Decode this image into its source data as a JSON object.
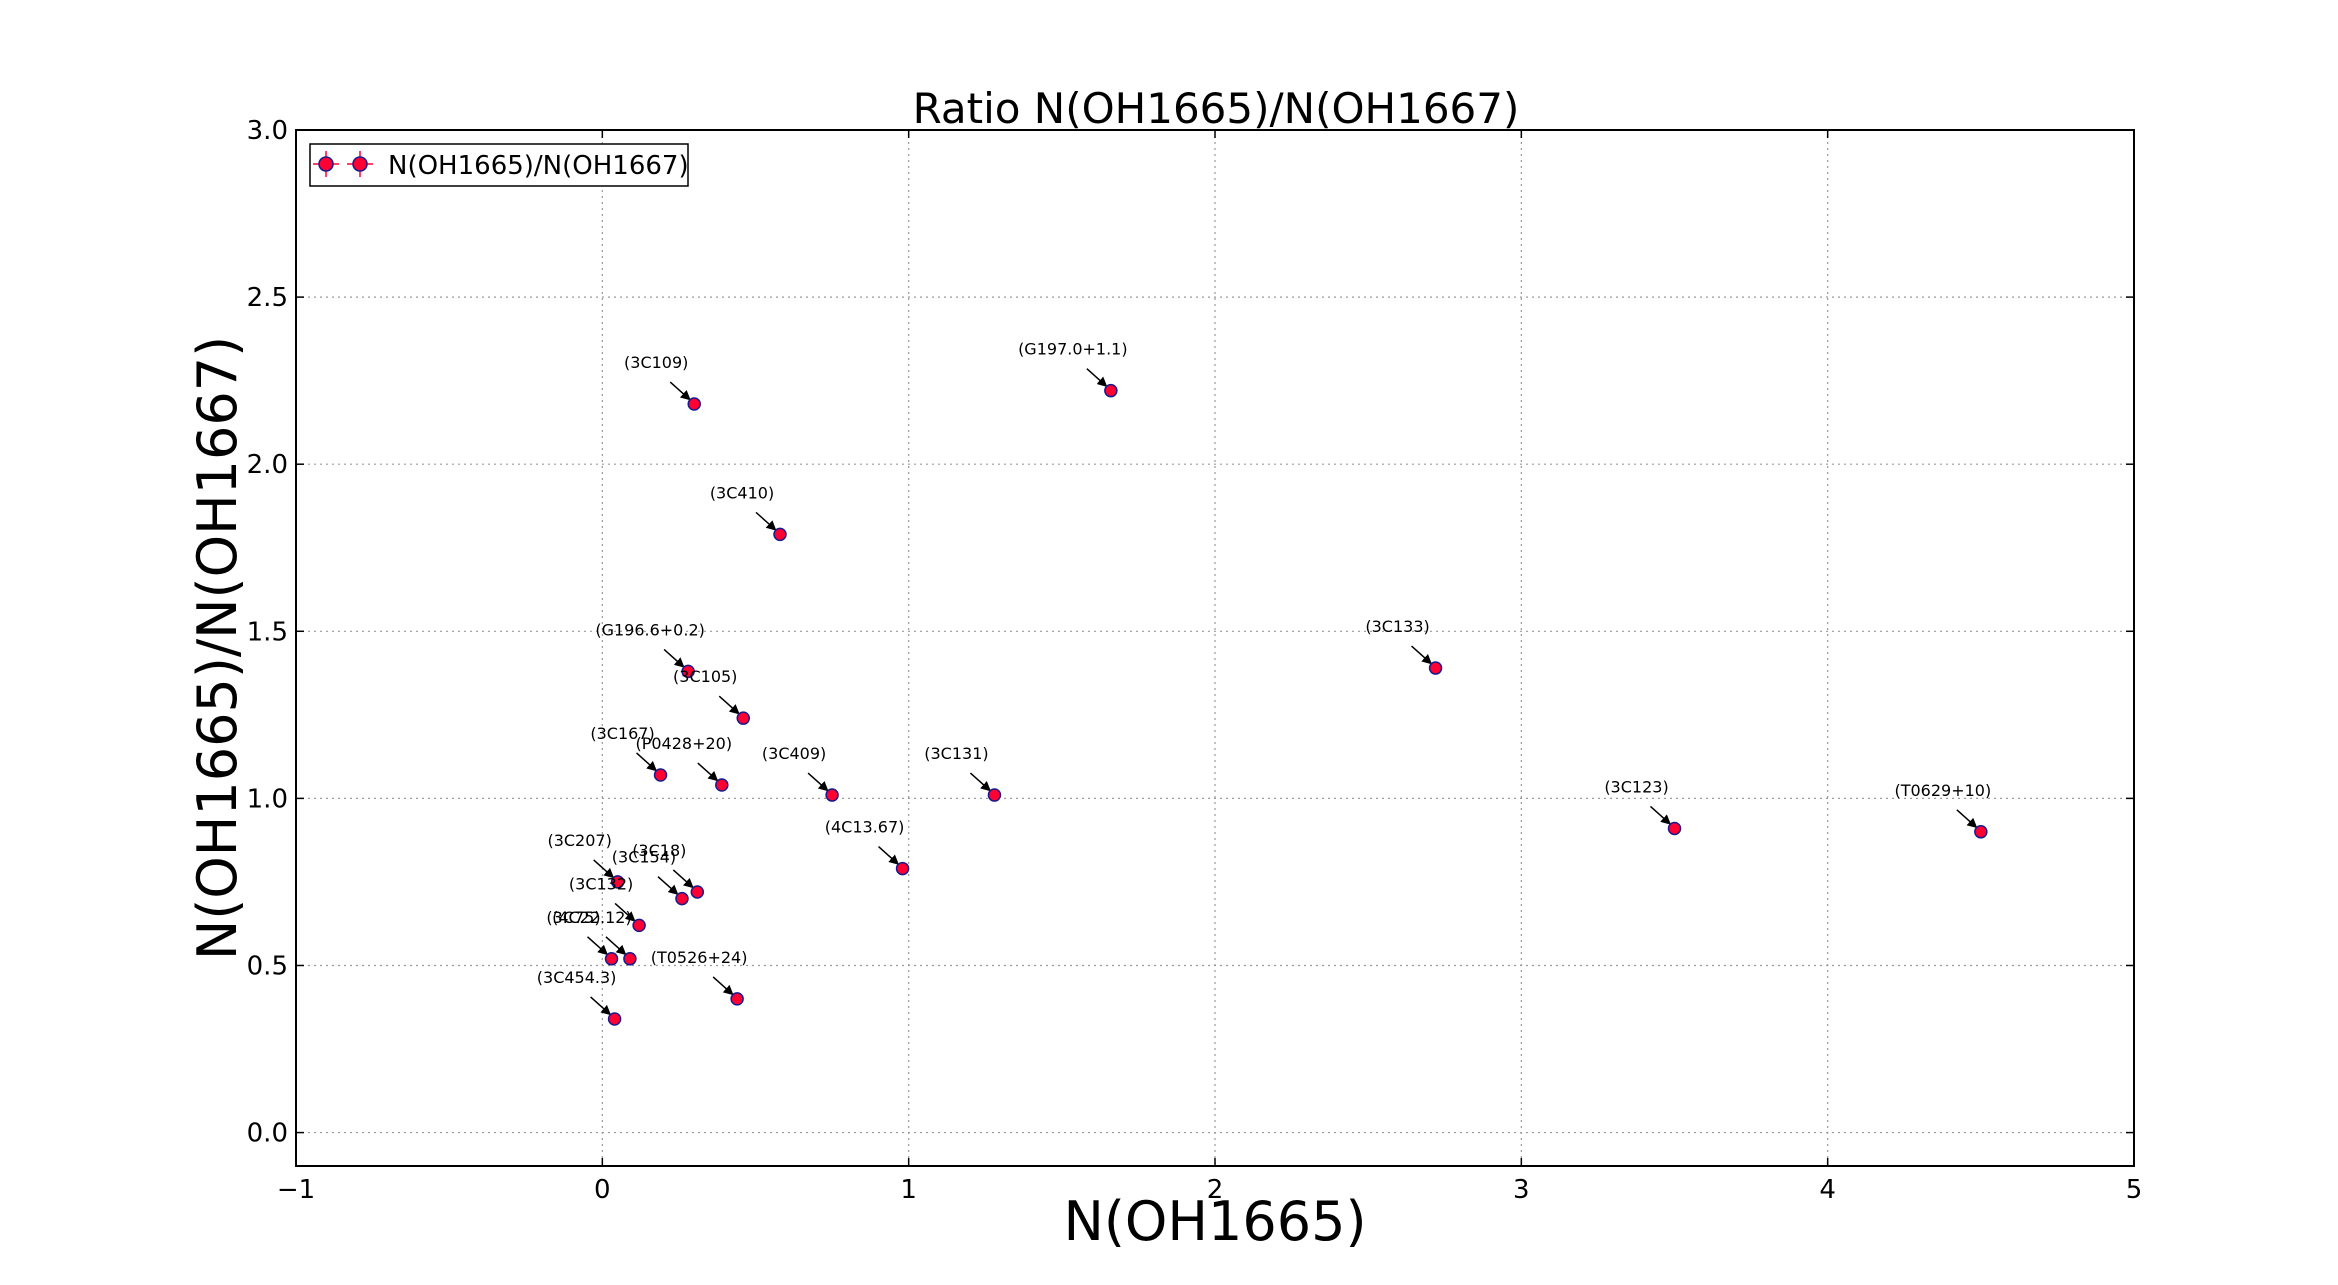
{
  "chart_data": {
    "type": "scatter",
    "title": "Ratio N(OH1665)/N(OH1667)",
    "xlabel": "N(OH1665)",
    "ylabel": "N(OH1665)/N(OH1667)",
    "xlim": [
      -1,
      5
    ],
    "ylim": [
      -0.1,
      3.0
    ],
    "xticks": [
      "−1",
      "0",
      "1",
      "2",
      "3",
      "4",
      "5"
    ],
    "xtick_values": [
      -1,
      0,
      1,
      2,
      3,
      4,
      5
    ],
    "yticks": [
      "0.0",
      "0.5",
      "1.0",
      "1.5",
      "2.0",
      "2.5",
      "3.0"
    ],
    "ytick_values": [
      0.0,
      0.5,
      1.0,
      1.5,
      2.0,
      2.5,
      3.0
    ],
    "grid": true,
    "legend": {
      "position": "top-left",
      "entries": [
        "N(OH1665)/N(OH1667)"
      ]
    },
    "marker_color": "#ff0033",
    "marker_edge": "#1a1a8c",
    "errorbar_color": "#ff0033",
    "points": [
      {
        "label": "(3C109)",
        "x": 0.3,
        "y": 2.18
      },
      {
        "label": "(G197.0+1.1)",
        "x": 1.66,
        "y": 2.22
      },
      {
        "label": "(3C410)",
        "x": 0.58,
        "y": 1.79
      },
      {
        "label": "(G196.6+0.2)",
        "x": 0.28,
        "y": 1.38
      },
      {
        "label": "(3C133)",
        "x": 2.72,
        "y": 1.39
      },
      {
        "label": "(3C105)",
        "x": 0.46,
        "y": 1.24
      },
      {
        "label": "(3C167)",
        "x": 0.19,
        "y": 1.07
      },
      {
        "label": "(P0428+20)",
        "x": 0.39,
        "y": 1.04
      },
      {
        "label": "(3C409)",
        "x": 0.75,
        "y": 1.01
      },
      {
        "label": "(3C131)",
        "x": 1.28,
        "y": 1.01
      },
      {
        "label": "(3C123)",
        "x": 3.5,
        "y": 0.91
      },
      {
        "label": "(T0629+10)",
        "x": 4.5,
        "y": 0.9
      },
      {
        "label": "(4C13.67)",
        "x": 0.98,
        "y": 0.79
      },
      {
        "label": "(3C207)",
        "x": 0.05,
        "y": 0.75
      },
      {
        "label": "(3C18)",
        "x": 0.31,
        "y": 0.72
      },
      {
        "label": "(3C154)",
        "x": 0.26,
        "y": 0.7
      },
      {
        "label": "(3C132)",
        "x": 0.12,
        "y": 0.62
      },
      {
        "label": "(3C75)",
        "x": 0.03,
        "y": 0.52
      },
      {
        "label": "(4C22.12)",
        "x": 0.09,
        "y": 0.52
      },
      {
        "label": "(T0526+24)",
        "x": 0.44,
        "y": 0.4
      },
      {
        "label": "(3C454.3)",
        "x": 0.04,
        "y": 0.34
      }
    ]
  }
}
